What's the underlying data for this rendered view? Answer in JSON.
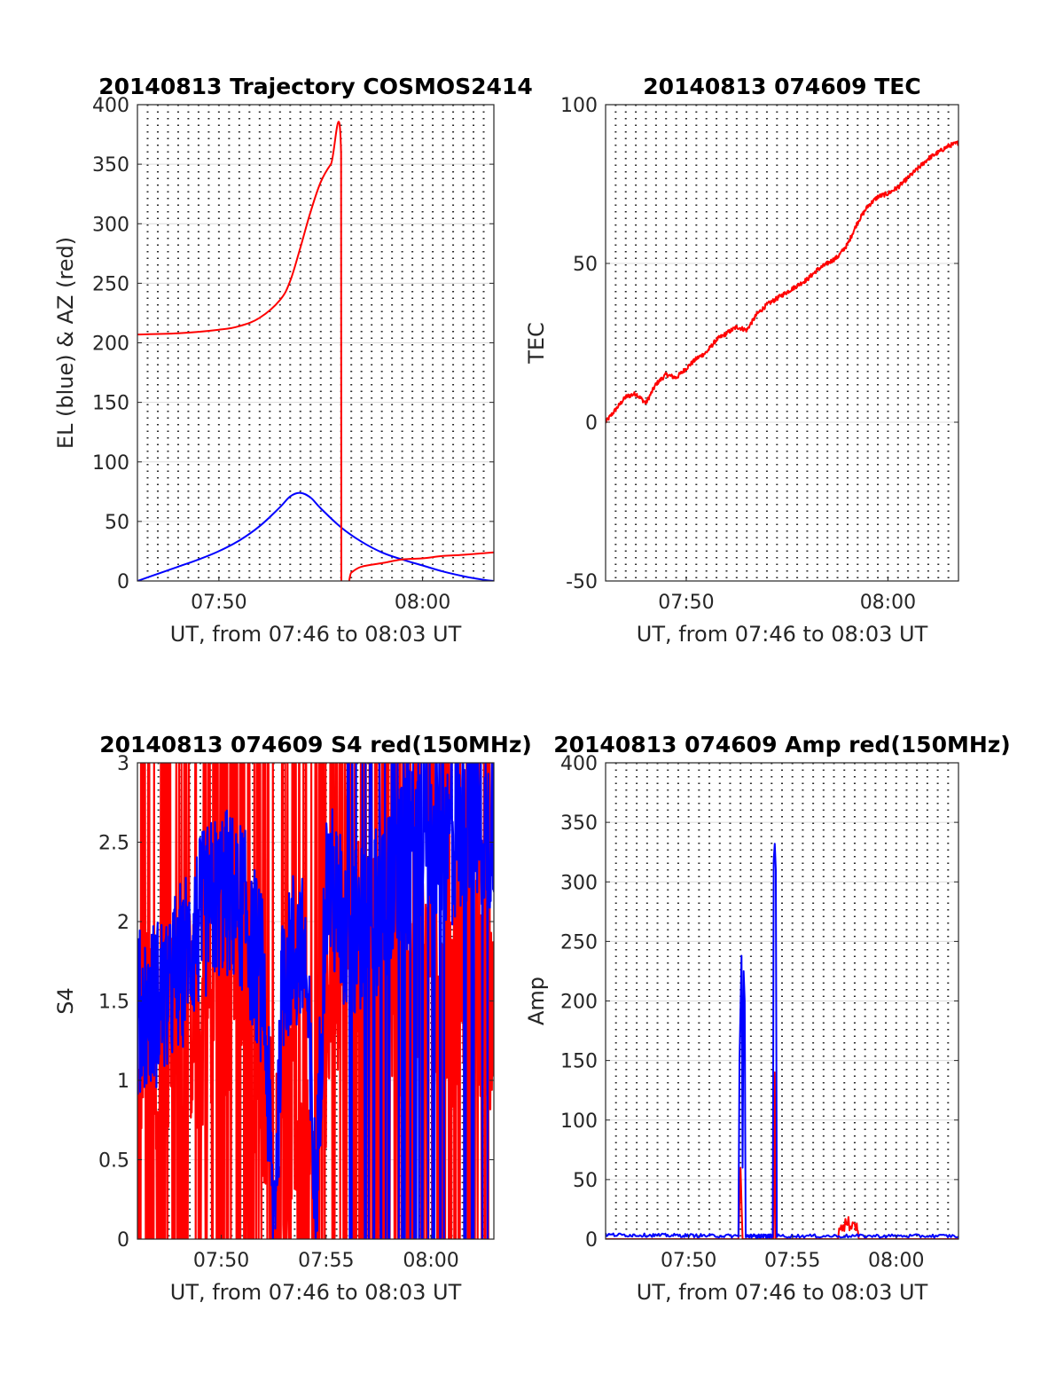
{
  "colors": {
    "el": "#0000ff",
    "az": "#ff0000",
    "tec": "#ff0000",
    "s4_red": "#ff0000",
    "s4_blue": "#0000ff",
    "amp_red": "#ff0000",
    "amp_blue": "#0000ff"
  },
  "chart_data": [
    {
      "type": "line",
      "title": "20140813 Trajectory COSMOS2414",
      "xlabel": "UT, from 07:46 to 08:03 UT",
      "ylabel": "EL (blue) & AZ (red)",
      "xlim_min": [
        466,
        483.5
      ],
      "ylim": [
        0,
        400
      ],
      "xticks_min": [
        470,
        480
      ],
      "xtick_labels": [
        "07:50",
        "08:00"
      ],
      "yticks": [
        0,
        50,
        100,
        150,
        200,
        250,
        300,
        350,
        400
      ],
      "ytick_labels": [
        "0",
        "50",
        "100",
        "150",
        "200",
        "250",
        "300",
        "350",
        "400"
      ],
      "grid": "dotted vertical every 0.5 min, light horizontal",
      "series": [
        {
          "color": "blue",
          "x": [
            466,
            467,
            468,
            469,
            470,
            471,
            472,
            473,
            473.5,
            474,
            474.5,
            475,
            476,
            477,
            478,
            479,
            480,
            481,
            482,
            483,
            483.5
          ],
          "y": [
            0,
            6,
            12,
            18,
            25,
            34,
            46,
            62,
            71,
            74,
            70,
            61,
            45,
            33,
            24,
            18,
            13,
            8,
            4,
            1,
            0
          ]
        },
        {
          "color": "red",
          "x": [
            466,
            468,
            470,
            471,
            472,
            473,
            473.5,
            474,
            474.5,
            475,
            475.5,
            476,
            476.01,
            476.5,
            477,
            478,
            479,
            480,
            481,
            482,
            483.5
          ],
          "y": [
            207,
            208,
            211,
            214,
            221,
            236,
            252,
            280,
            310,
            335,
            350,
            359,
            0,
            7,
            12,
            15,
            18,
            19,
            21,
            22,
            24
          ]
        }
      ]
    },
    {
      "type": "line",
      "title": "20140813 074609 TEC",
      "xlabel": "UT, from 07:46 to 08:03 UT",
      "ylabel": "TEC",
      "xlim_min": [
        466,
        483.5
      ],
      "ylim": [
        -50,
        100
      ],
      "xticks_min": [
        470,
        480
      ],
      "xtick_labels": [
        "07:50",
        "08:00"
      ],
      "yticks": [
        -50,
        0,
        50,
        100
      ],
      "ytick_labels": [
        "-50",
        "0",
        "50",
        "100"
      ],
      "grid": "dotted vertical every 0.5 min, light horizontal",
      "series": [
        {
          "color": "red",
          "x": [
            466,
            466.5,
            467,
            467.5,
            468,
            468.5,
            469,
            469.5,
            470,
            470.5,
            471,
            471.5,
            472,
            472.5,
            473,
            473.5,
            474,
            474.5,
            475,
            475.5,
            476,
            476.5,
            477,
            477.5,
            478,
            478.5,
            479,
            479.5,
            480,
            480.5,
            481,
            481.5,
            482,
            482.5,
            483,
            483.5
          ],
          "y": [
            0,
            4,
            8,
            9,
            6,
            12,
            15,
            14,
            17,
            20,
            22,
            26,
            28,
            30,
            29,
            34,
            37,
            39,
            41,
            43,
            45,
            48,
            50,
            52,
            56,
            63,
            68,
            71,
            72,
            74,
            77,
            80,
            83,
            85,
            87,
            88
          ]
        }
      ]
    },
    {
      "type": "line",
      "title": "20140813 074609 S4 red(150MHz)",
      "xlabel": "UT, from 07:46 to 08:03 UT",
      "ylabel": "S4",
      "xlim_min": [
        466,
        483
      ],
      "ylim": [
        0,
        3
      ],
      "xticks_min": [
        470,
        475,
        480
      ],
      "xtick_labels": [
        "07:50",
        "07:55",
        "08:00"
      ],
      "yticks": [
        0,
        0.5,
        1,
        1.5,
        2,
        2.5,
        3
      ],
      "ytick_labels": [
        "0",
        "0.5",
        "1",
        "1.5",
        "2",
        "2.5",
        "3"
      ],
      "grid": "dotted vertical every 0.5 min, light horizontal",
      "series": [
        {
          "color": "red",
          "note_visible": "dense noisy oscillation between 0 and 3 throughout, strongest 07:46–07:52 and 07:56–08:03",
          "x": [
            466,
            467,
            468,
            469,
            470,
            471,
            472,
            472.5,
            473,
            474,
            474.5,
            475,
            476,
            477,
            478,
            479,
            480,
            481,
            482,
            483
          ],
          "y": [
            1.4,
            1.2,
            1.5,
            1.3,
            1.6,
            1.4,
            1.1,
            0.5,
            0.8,
            0.9,
            0.1,
            1.2,
            2.2,
            1.8,
            1.6,
            1.5,
            1.7,
            1.4,
            1.6,
            1.5
          ]
        },
        {
          "color": "blue",
          "x": [
            466,
            467,
            468,
            469,
            470,
            471,
            472,
            472.5,
            473,
            474,
            474.5,
            475,
            476,
            477,
            478,
            479,
            480,
            481,
            482,
            483
          ],
          "y": [
            1.4,
            1.5,
            1.7,
            2.0,
            2.2,
            2.1,
            1.6,
            0.1,
            1.8,
            1.8,
            0.1,
            2.3,
            1.9,
            2.0,
            2.2,
            2.4,
            2.6,
            2.5,
            2.7,
            2.6
          ]
        }
      ]
    },
    {
      "type": "line",
      "title": "20140813 074609 Amp red(150MHz)",
      "xlabel": "UT, from 07:46 to 08:03 UT",
      "ylabel": "Amp",
      "xlim_min": [
        466,
        483
      ],
      "ylim": [
        0,
        400
      ],
      "xticks_min": [
        470,
        475,
        480
      ],
      "xtick_labels": [
        "07:50",
        "07:55",
        "08:00"
      ],
      "yticks": [
        0,
        50,
        100,
        150,
        200,
        250,
        300,
        350,
        400
      ],
      "ytick_labels": [
        "0",
        "50",
        "100",
        "150",
        "200",
        "250",
        "300",
        "350",
        "400"
      ],
      "grid": "dotted vertical every 0.5 min, light horizontal",
      "series": [
        {
          "color": "red",
          "x": [
            466,
            472.4,
            472.5,
            472.6,
            474.1,
            474.15,
            474.2,
            477.2,
            477.3,
            477.5,
            477.7,
            477.9,
            478.1,
            478.2,
            483
          ],
          "y": [
            0,
            0,
            60,
            0,
            0,
            140,
            0,
            0,
            18,
            20,
            16,
            18,
            14,
            0,
            0
          ]
        },
        {
          "color": "blue",
          "x": [
            466,
            472.4,
            472.45,
            472.55,
            472.6,
            472.65,
            472.7,
            472.75,
            474.05,
            474.1,
            474.15,
            474.2,
            474.25,
            483
          ],
          "y": [
            3,
            2,
            150,
            238,
            60,
            225,
            200,
            2,
            2,
            318,
            332,
            310,
            2,
            2
          ]
        }
      ]
    }
  ]
}
